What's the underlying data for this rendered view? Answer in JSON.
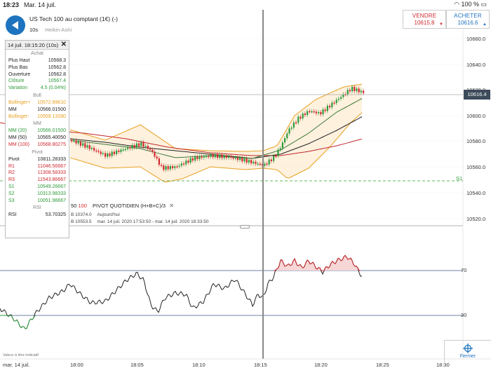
{
  "status_bar": {
    "time": "18:23",
    "date": "Mar. 14 juil.",
    "battery": "100 %"
  },
  "instrument": {
    "title": "US Tech 100 au comptant (1€) (-)",
    "interval": "10s",
    "candle_type": "Heikin-Ashi"
  },
  "trade": {
    "sell_label": "VENDRE",
    "sell_price": "10615.8",
    "buy_label": "ACHETER",
    "buy_price": "10616.6"
  },
  "popup": {
    "header": "14 juil. 18:15:20 (10s)",
    "achat_title": "Achat",
    "achat": [
      {
        "label": "Plus Haut",
        "value": "10568.3"
      },
      {
        "label": "Plus Bas",
        "value": "10562.8"
      },
      {
        "label": "Ouverture",
        "value": "10562.8"
      },
      {
        "label": "Clôture",
        "value": "10567.4"
      },
      {
        "label": "Variation",
        "value": "4.5 (0.04%)"
      }
    ],
    "boll_title": "Boll",
    "boll": [
      {
        "label": "Bollinger+",
        "value": "10572.89610"
      },
      {
        "label": "MM",
        "value": "10566.01500"
      },
      {
        "label": "Bollinger-",
        "value": "10559.13390"
      }
    ],
    "mm_title": "MM",
    "mm": [
      {
        "label": "MM (20)",
        "value": "10566.01500"
      },
      {
        "label": "MM (50)",
        "value": "10565.40050"
      },
      {
        "label": "MM (100)",
        "value": "10568.80275"
      }
    ],
    "pivot_title": "Pivot",
    "pivot": [
      {
        "label": "Pivot",
        "value": "10811.28333"
      },
      {
        "label": "R1",
        "value": "11046.56667"
      },
      {
        "label": "R2",
        "value": "11308.58333"
      },
      {
        "label": "R3",
        "value": "11543.86667"
      },
      {
        "label": "S1",
        "value": "10549.26667"
      },
      {
        "label": "S2",
        "value": "10313.98333"
      },
      {
        "label": "S3",
        "value": "10051.96667"
      }
    ],
    "rsi_title": "RSI",
    "rsi": [
      {
        "label": "RSI",
        "value": "53.70325"
      }
    ]
  },
  "legend": {
    "ma_a": "50",
    "ma_b": "100",
    "pivot": "PIVOT  QUOTIDIEN  (H+B+C)/3",
    "close_glyph": "✕"
  },
  "info": {
    "b1": "B 10374.0",
    "today": "Aujourd'hui",
    "b2": "B 10553.5",
    "range": "mar. 14 juil. 2020 17:53:50 - mar. 14 juil. 2020 18:33:50"
  },
  "y_axis": [
    "10660.0",
    "10640.0",
    "10620.0",
    "10600.0",
    "10580.0",
    "10560.0",
    "10540.0",
    "10520.0"
  ],
  "current_price": "10616.4",
  "s1_label": "S1",
  "rsi_levels": [
    "70",
    "30"
  ],
  "x_axis": [
    "mar. 14 juil.",
    "18:00",
    "18:05",
    "18:10",
    "18:15",
    "18:20",
    "18:25",
    "18:30"
  ],
  "disclaimer": "Valeur à titre indicatif",
  "close_button": "Fermer",
  "colors": {
    "up": "#2e9a3a",
    "down": "#d0282e",
    "bollinger": "#e8a020",
    "accent": "#1e73be"
  }
}
